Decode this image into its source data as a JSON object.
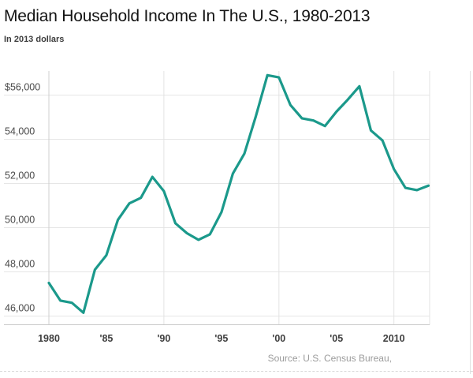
{
  "header": {
    "title": "Median Household Income In The U.S., 1980-2013",
    "subtitle": "In 2013 dollars"
  },
  "source": "Source: U.S. Census Bureau,",
  "chart_data": {
    "type": "line",
    "title": "Median Household Income In The U.S., 1980-2013",
    "subtitle": "In 2013 dollars",
    "series_name": "Median household income, 2013 dollars",
    "x": [
      1980,
      1981,
      1982,
      1983,
      1984,
      1985,
      1986,
      1987,
      1988,
      1989,
      1990,
      1991,
      1992,
      1993,
      1994,
      1995,
      1996,
      1997,
      1998,
      1999,
      2000,
      2001,
      2002,
      2003,
      2004,
      2005,
      2006,
      2007,
      2008,
      2009,
      2010,
      2011,
      2012,
      2013
    ],
    "values": [
      47500,
      46700,
      46600,
      46150,
      48100,
      48750,
      50350,
      51100,
      51350,
      52300,
      51650,
      50200,
      49750,
      49450,
      49700,
      50700,
      52450,
      53350,
      55050,
      56900,
      56800,
      55550,
      54950,
      54850,
      54600,
      55250,
      55800,
      56400,
      54400,
      53950,
      52650,
      51800,
      51700,
      51900
    ],
    "x_tick_labels": [
      "1980",
      "'85",
      "'90",
      "'95",
      "'00",
      "'05",
      "2010"
    ],
    "x_tick_years": [
      1980,
      1985,
      1990,
      1995,
      2000,
      2005,
      2010
    ],
    "y_tick_labels": [
      "$56,000",
      "54,000",
      "52,000",
      "50,000",
      "48,000",
      "46,000"
    ],
    "y_tick_values": [
      56000,
      54000,
      52000,
      50000,
      48000,
      46000
    ],
    "xlim": [
      1980,
      2013
    ],
    "ylim": [
      46000,
      57200
    ],
    "grid": true,
    "legend_position": "none",
    "line_color": "#1b998b",
    "grid_color": "#e6e6e6",
    "axis_line_color": "#c9c9c9",
    "y_label_color": "#4a4a4a",
    "x_label_color": "#3f3f3f"
  }
}
